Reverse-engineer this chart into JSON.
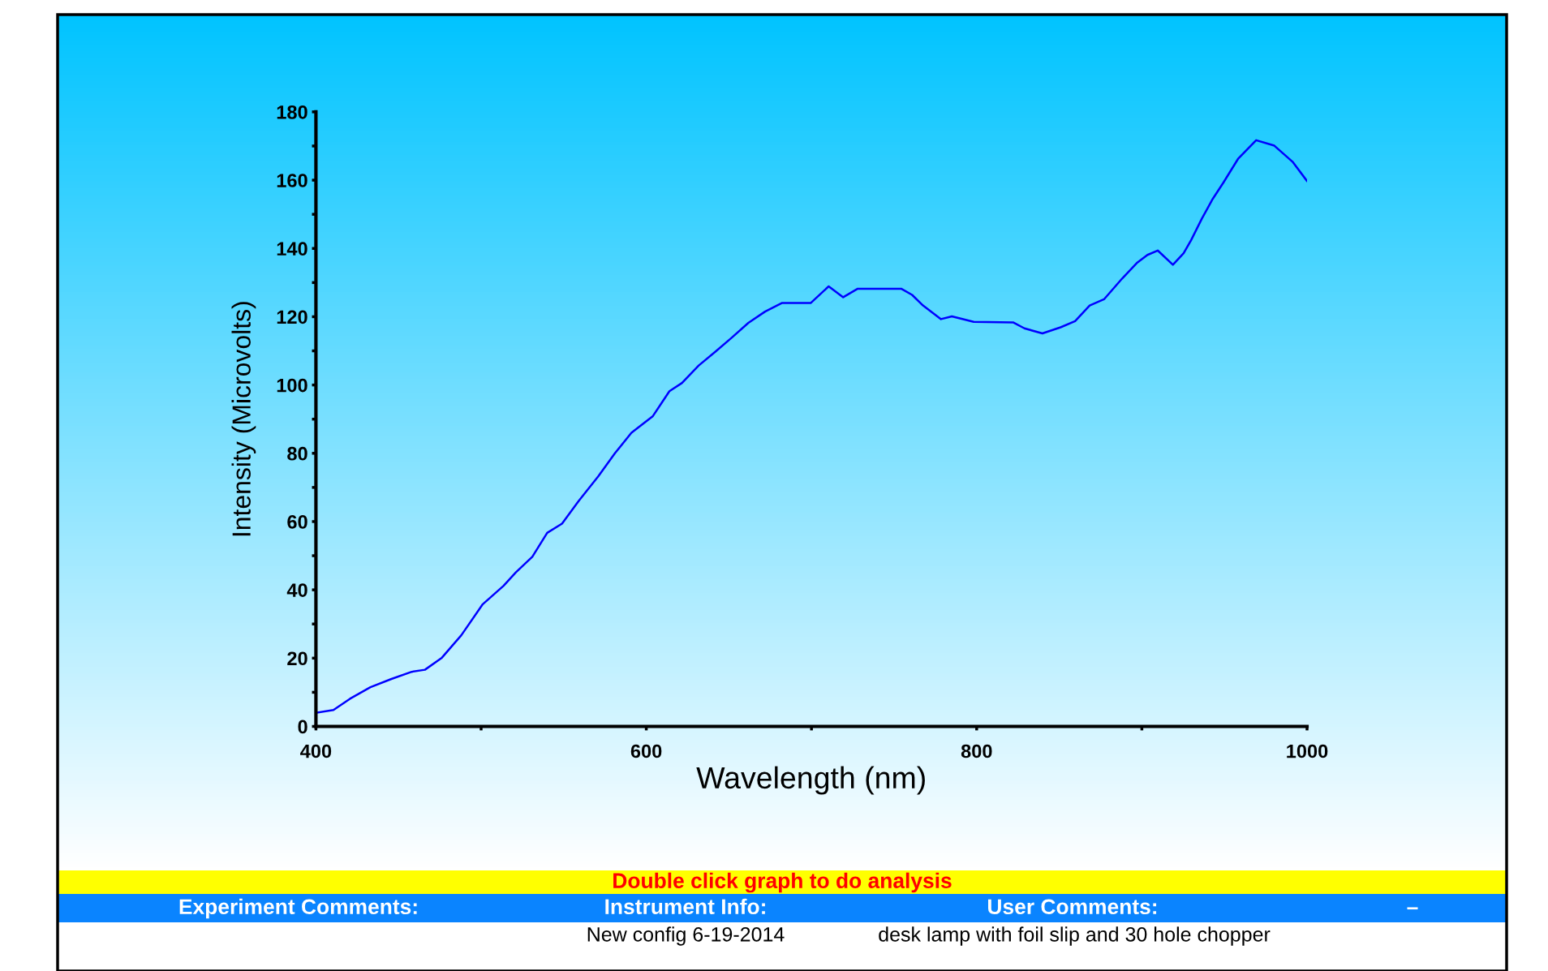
{
  "chart_data": {
    "type": "line",
    "xlabel": "Wavelength (nm)",
    "ylabel": "Intensity (Microvolts)",
    "annotations": [
      "Double click graph to do analysis",
      "Experiment Comments:",
      "Instrument Info:",
      "User Comments:",
      "–",
      "New config 6-19-2014",
      "desk lamp with foil slip and 30 hole chopper"
    ],
    "series": [
      {
        "color": "#0000ff",
        "x": [
          400,
          410.6,
          420.6,
          433,
          445.7,
          458,
          466,
          476,
          488,
          501,
          513.6,
          521,
          531,
          540,
          549,
          559,
          571,
          581,
          591,
          604,
          614,
          621.6,
          631.7,
          641.7,
          651.8,
          661.8,
          671.9,
          682,
          699.5,
          710.4,
          719.2,
          728,
          754.3,
          760.9,
          767.5,
          778.4,
          785,
          798.2,
          822.3,
          828.9,
          839.8,
          850.8,
          859.6,
          868.4,
          877.1,
          888.1,
          896.9,
          903.4,
          909.6,
          918.8,
          925.3,
          929.8,
          936.3,
          942.9,
          949.4,
          958.2,
          969.2,
          980.2,
          991.2,
          999.9
        ],
        "values": [
          4.0,
          4.8,
          8.1,
          11.5,
          13.9,
          16,
          16.6,
          20,
          26.7,
          35.8,
          41.2,
          45.1,
          49.7,
          56.7,
          59.4,
          66,
          73.3,
          80,
          86,
          90.9,
          98.2,
          100.6,
          105.7,
          109.7,
          113.9,
          118.2,
          121.5,
          124,
          124.0,
          128.9,
          125.7,
          128.2,
          128.2,
          126.4,
          123.3,
          119.3,
          120.1,
          118.5,
          118.3,
          116.6,
          115.1,
          116.9,
          118.7,
          123.3,
          125.1,
          131.2,
          135.7,
          138.1,
          139.4,
          135.2,
          138.6,
          142.4,
          148.7,
          154.5,
          159.3,
          166.2,
          171.7,
          170.1,
          165.4,
          159.8
        ]
      }
    ],
    "xlim": [
      400,
      1000
    ],
    "xticks": [
      400,
      {
        "value": 500,
        "label": null
      },
      600,
      {
        "value": 700,
        "label": null
      },
      800,
      {
        "value": 900,
        "label": null
      },
      1000
    ],
    "ylim": [
      0,
      180
    ],
    "yticks": [
      0,
      {
        "value": 10,
        "label": null
      },
      20,
      {
        "value": 30,
        "label": null
      },
      40,
      {
        "value": 50,
        "label": null
      },
      60,
      {
        "value": 70,
        "label": null
      },
      80,
      {
        "value": 90,
        "label": null
      },
      100,
      {
        "value": 110,
        "label": null
      },
      120,
      {
        "value": 130,
        "label": null
      },
      140,
      {
        "value": 150,
        "label": null
      },
      160,
      {
        "value": 170,
        "label": null
      },
      180
    ],
    "grid": false,
    "marker": "none",
    "line_style": "solid"
  }
}
